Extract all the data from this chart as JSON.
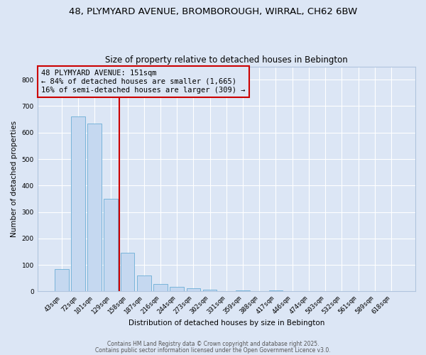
{
  "title_line1": "48, PLYMYARD AVENUE, BROMBOROUGH, WIRRAL, CH62 6BW",
  "title_line2": "Size of property relative to detached houses in Bebington",
  "xlabel": "Distribution of detached houses by size in Bebington",
  "ylabel": "Number of detached properties",
  "categories": [
    "43sqm",
    "72sqm",
    "101sqm",
    "129sqm",
    "158sqm",
    "187sqm",
    "216sqm",
    "244sqm",
    "273sqm",
    "302sqm",
    "331sqm",
    "359sqm",
    "388sqm",
    "417sqm",
    "446sqm",
    "474sqm",
    "503sqm",
    "532sqm",
    "561sqm",
    "589sqm",
    "618sqm"
  ],
  "values": [
    85,
    660,
    635,
    350,
    147,
    60,
    28,
    18,
    12,
    7,
    1,
    4,
    0,
    4,
    0,
    0,
    0,
    0,
    0,
    0,
    0
  ],
  "bar_color": "#c5d8f0",
  "bar_edge_color": "#6baed6",
  "vline_color": "#cc0000",
  "annotation_box_text": "48 PLYMYARD AVENUE: 151sqm\n← 84% of detached houses are smaller (1,665)\n16% of semi-detached houses are larger (309) →",
  "box_edge_color": "#cc0000",
  "background_color": "#dce6f5",
  "grid_color": "#ffffff",
  "ylim": [
    0,
    850
  ],
  "yticks": [
    0,
    100,
    200,
    300,
    400,
    500,
    600,
    700,
    800
  ],
  "footer_line1": "Contains HM Land Registry data © Crown copyright and database right 2025.",
  "footer_line2": "Contains public sector information licensed under the Open Government Licence v3.0.",
  "title_fontsize": 9.5,
  "subtitle_fontsize": 8.5,
  "axis_label_fontsize": 7.5,
  "tick_fontsize": 6.5,
  "annotation_fontsize": 7.5,
  "footer_fontsize": 5.5
}
